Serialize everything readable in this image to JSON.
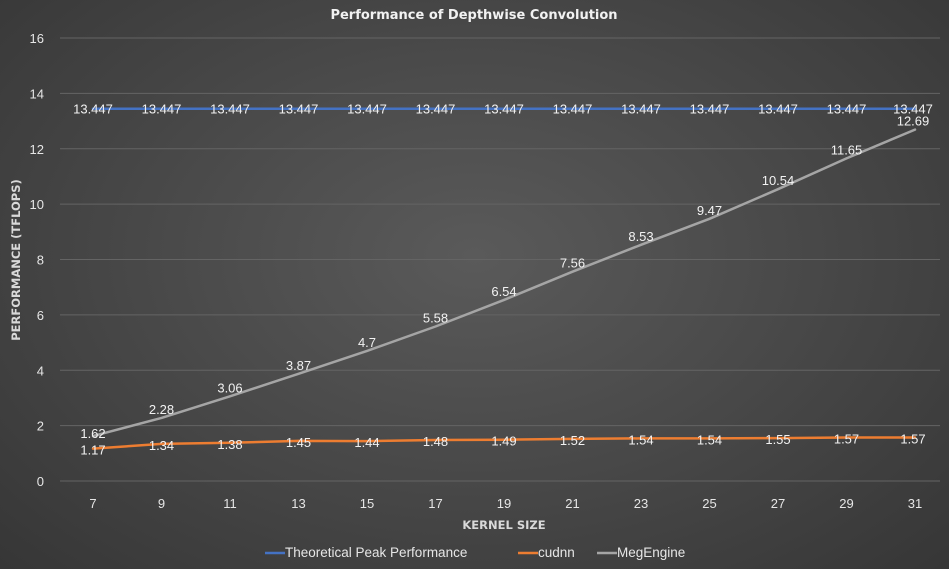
{
  "chart_data": {
    "type": "line",
    "title": "Performance of Depthwise Convolution",
    "xlabel": "KERNEL SIZE",
    "ylabel": "PERFORMANCE (TFLOPS)",
    "ylim": [
      0,
      16
    ],
    "ytick_step": 2,
    "grid": true,
    "legend_position": "bottom",
    "categories": [
      "7",
      "9",
      "11",
      "13",
      "15",
      "17",
      "19",
      "21",
      "23",
      "25",
      "27",
      "29",
      "31"
    ],
    "series": [
      {
        "name": "Theoretical Peak Performance",
        "color": "#4472c4",
        "values": [
          13.447,
          13.447,
          13.447,
          13.447,
          13.447,
          13.447,
          13.447,
          13.447,
          13.447,
          13.447,
          13.447,
          13.447,
          13.447
        ],
        "labels": [
          "13.447",
          "13.447",
          "13.447",
          "13.447",
          "13.447",
          "13.447",
          "13.447",
          "13.447",
          "13.447",
          "13.447",
          "13.447",
          "13.447",
          "13.447"
        ]
      },
      {
        "name": "cudnn",
        "color": "#ed7d31",
        "values": [
          1.17,
          1.34,
          1.38,
          1.45,
          1.44,
          1.48,
          1.49,
          1.52,
          1.54,
          1.54,
          1.55,
          1.57,
          1.57
        ],
        "labels": [
          "1.17",
          "1.34",
          "1.38",
          "1.45",
          "1.44",
          "1.48",
          "1.49",
          "1.52",
          "1.54",
          "1.54",
          "1.55",
          "1.57",
          "1.57"
        ]
      },
      {
        "name": "MegEngine",
        "color": "#a5a5a5",
        "values": [
          1.62,
          2.28,
          3.06,
          3.87,
          4.7,
          5.58,
          6.54,
          7.56,
          8.53,
          9.47,
          10.54,
          11.65,
          12.69
        ],
        "labels": [
          "1.62",
          "2.28",
          "3.06",
          "3.87",
          "4.7",
          "5.58",
          "6.54",
          "7.56",
          "8.53",
          "9.47",
          "10.54",
          "11.65",
          "12.69"
        ]
      }
    ]
  }
}
